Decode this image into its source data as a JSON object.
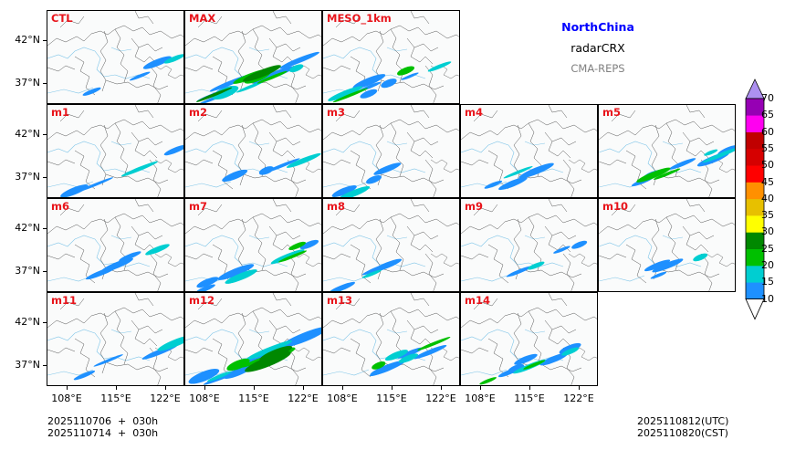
{
  "header": {
    "region": "NorthChina",
    "product": "radarCRX",
    "system": "CMA-REPS"
  },
  "panels": [
    {
      "label": "CTL",
      "intensity": "low"
    },
    {
      "label": "MAX",
      "intensity": "high"
    },
    {
      "label": "MESO_1km",
      "intensity": "mid"
    },
    {
      "label": "m1",
      "intensity": "low"
    },
    {
      "label": "m2",
      "intensity": "low"
    },
    {
      "label": "m3",
      "intensity": "low"
    },
    {
      "label": "m4",
      "intensity": "low"
    },
    {
      "label": "m5",
      "intensity": "mid"
    },
    {
      "label": "m6",
      "intensity": "low"
    },
    {
      "label": "m7",
      "intensity": "mid"
    },
    {
      "label": "m8",
      "intensity": "low"
    },
    {
      "label": "m9",
      "intensity": "low"
    },
    {
      "label": "m10",
      "intensity": "low"
    },
    {
      "label": "m11",
      "intensity": "low"
    },
    {
      "label": "m12",
      "intensity": "high"
    },
    {
      "label": "m13",
      "intensity": "mid"
    },
    {
      "label": "m14",
      "intensity": "mid"
    }
  ],
  "axes": {
    "lat_labels": [
      "42°N",
      "37°N"
    ],
    "lon_labels": [
      "108°E",
      "115°E",
      "122°E"
    ]
  },
  "colorbar": {
    "levels": [
      "10",
      "15",
      "20",
      "25",
      "30",
      "35",
      "40",
      "45",
      "50",
      "55",
      "60",
      "65",
      "70"
    ],
    "colors": [
      "#1e90ff",
      "#00ced1",
      "#00c000",
      "#008800",
      "#ffff00",
      "#e7c000",
      "#ff9000",
      "#ff0000",
      "#d60000",
      "#c00000",
      "#ff00f0",
      "#9600b4",
      "#ad90f0"
    ],
    "under_color": "#ffffff",
    "over_color": "#ad90f0"
  },
  "footer": {
    "init_utc": "2025110706  +  030h",
    "init_cst": "2025110714  +  030h",
    "valid_utc": "2025110812(UTC)",
    "valid_cst": "2025110820(CST)"
  }
}
